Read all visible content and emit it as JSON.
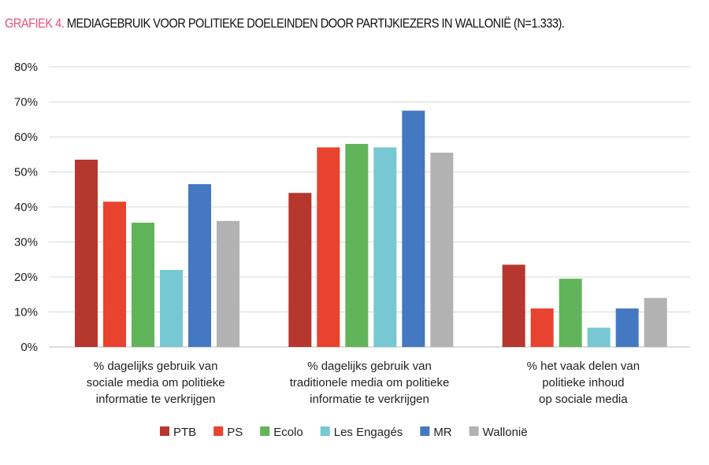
{
  "title_prefix": "GRAFIEK 4.",
  "title": "MEDIAGEBRUIK VOOR POLITIEKE DOELEINDEN DOOR PARTIJKIEZERS IN WALLONIË (N=1.333).",
  "chart_data": {
    "type": "bar",
    "categories": [
      [
        "% dagelijks gebruik van",
        "sociale media om politieke",
        "informatie te verkrijgen"
      ],
      [
        "% dagelijks gebruik van",
        "traditionele media om politieke",
        "informatie te verkrijgen"
      ],
      [
        "% het vaak delen van",
        "politieke inhoud",
        "op sociale media"
      ]
    ],
    "series": [
      {
        "name": "PTB",
        "color": "#b5372e",
        "values": [
          53.5,
          44,
          23.5
        ]
      },
      {
        "name": "PS",
        "color": "#e8432e",
        "values": [
          41.5,
          57,
          11
        ]
      },
      {
        "name": "Ecolo",
        "color": "#62b45a",
        "values": [
          35.5,
          58,
          19.5
        ]
      },
      {
        "name": "Les Engagés",
        "color": "#77c8d2",
        "values": [
          22,
          57,
          5.5
        ]
      },
      {
        "name": "MR",
        "color": "#4479c2",
        "values": [
          46.5,
          67.5,
          11
        ]
      },
      {
        "name": "Wallonië",
        "color": "#b2b2b2",
        "values": [
          36,
          55.5,
          14
        ]
      }
    ],
    "ylim": [
      0,
      80
    ],
    "yticks": [
      "0%",
      "10%",
      "20%",
      "30%",
      "40%",
      "50%",
      "60%",
      "70%",
      "80%"
    ],
    "grid": true,
    "legend": "bottom"
  }
}
